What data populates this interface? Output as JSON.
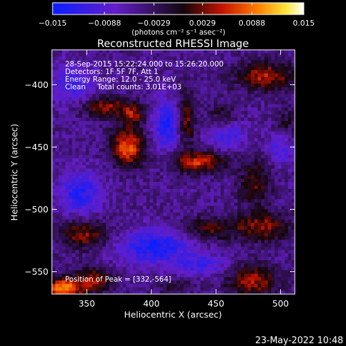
{
  "colorbar": {
    "ticks": [
      {
        "value": -0.015,
        "label": "−0.015"
      },
      {
        "value": -0.0088,
        "label": "−0.0088"
      },
      {
        "value": -0.0029,
        "label": "−0.0029"
      },
      {
        "value": 0.0029,
        "label": "0.0029"
      },
      {
        "value": 0.0088,
        "label": "0.0088"
      },
      {
        "value": 0.015,
        "label": "0.015"
      }
    ],
    "range": [
      -0.015,
      0.015
    ],
    "units_label": "(photons cm⁻² s⁻¹ asec⁻²)"
  },
  "chart_data": {
    "type": "heatmap",
    "title": "Reconstructed RHESSI Image",
    "xlabel": "Heliocentric X (arcsec)",
    "ylabel": "Heliocentric Y (arcsec)",
    "xlim": [
      323,
      511
    ],
    "ylim": [
      -568,
      -372
    ],
    "xticks": [
      350,
      400,
      450,
      500
    ],
    "yticks": [
      -400,
      -450,
      -500,
      -550
    ],
    "grid": false,
    "color_table": "blue-purple-black-red-yellow-white",
    "sources": [
      {
        "x": 382,
        "y": -450,
        "peak": 0.0125,
        "sx": 9,
        "sy": 11
      },
      {
        "x": 386,
        "y": -424,
        "peak": 0.007,
        "sx": 6,
        "sy": 6
      },
      {
        "x": 365,
        "y": -418,
        "peak": 0.0085,
        "sx": 14,
        "sy": 6
      },
      {
        "x": 427,
        "y": -427,
        "peak": 0.0085,
        "sx": 5,
        "sy": 15
      },
      {
        "x": 437,
        "y": -462,
        "peak": 0.0105,
        "sx": 15,
        "sy": 6
      },
      {
        "x": 481,
        "y": -478,
        "peak": 0.0065,
        "sx": 9,
        "sy": 14
      },
      {
        "x": 488,
        "y": -393,
        "peak": 0.0095,
        "sx": 16,
        "sy": 8
      },
      {
        "x": 503,
        "y": -433,
        "peak": 0.005,
        "sx": 6,
        "sy": 10
      },
      {
        "x": 455,
        "y": -426,
        "peak": 0.005,
        "sx": 8,
        "sy": 8
      },
      {
        "x": 348,
        "y": -520,
        "peak": 0.0085,
        "sx": 14,
        "sy": 8
      },
      {
        "x": 445,
        "y": -516,
        "peak": 0.0065,
        "sx": 16,
        "sy": 7
      },
      {
        "x": 487,
        "y": -514,
        "peak": 0.0085,
        "sx": 14,
        "sy": 8
      },
      {
        "x": 332,
        "y": -564,
        "peak": 0.015,
        "sx": 9,
        "sy": 6
      },
      {
        "x": 355,
        "y": -557,
        "peak": 0.009,
        "sx": 10,
        "sy": 7
      },
      {
        "x": 478,
        "y": -557,
        "peak": 0.009,
        "sx": 14,
        "sy": 9
      },
      {
        "x": 420,
        "y": -562,
        "peak": 0.004,
        "sx": 10,
        "sy": 4
      }
    ],
    "negative_regions": [
      {
        "x": 412,
        "y": -432,
        "depth": -0.009,
        "sx": 8,
        "sy": 14
      },
      {
        "x": 458,
        "y": -440,
        "depth": -0.007,
        "sx": 10,
        "sy": 8
      },
      {
        "x": 345,
        "y": -487,
        "depth": -0.008,
        "sx": 12,
        "sy": 12
      },
      {
        "x": 403,
        "y": -530,
        "depth": -0.009,
        "sx": 20,
        "sy": 10
      },
      {
        "x": 500,
        "y": -450,
        "depth": -0.006,
        "sx": 8,
        "sy": 10
      },
      {
        "x": 440,
        "y": -545,
        "depth": -0.006,
        "sx": 14,
        "sy": 6
      },
      {
        "x": 340,
        "y": -400,
        "depth": -0.006,
        "sx": 12,
        "sy": 12
      }
    ],
    "annotations": [
      "28-Sep-2015 15:22:24.000 to 15:26:20.000",
      "Detectors: 1F 5F 7F, Att 1",
      "Energy Range: 12.0 - 25.0 keV",
      "Clean     Total counts: 3.01E+03"
    ],
    "peak_label": "Position of Peak = [332,-564]"
  },
  "footer_date": "23-May-2022 10:48"
}
